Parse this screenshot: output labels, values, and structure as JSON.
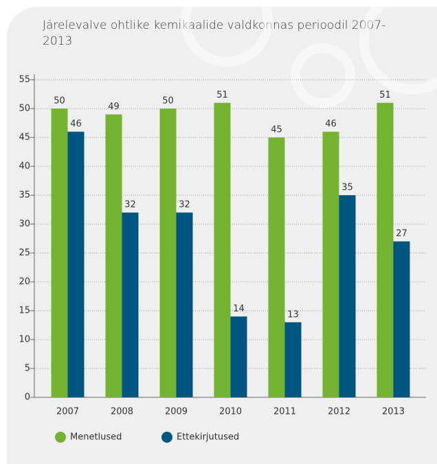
{
  "chart_data": {
    "type": "bar",
    "title": "Järelevalve ohtlike kemikaalide valdkonnas perioodil 2007-2013",
    "categories": [
      "2007",
      "2008",
      "2009",
      "2010",
      "2011",
      "2012",
      "2013"
    ],
    "series": [
      {
        "name": "Menetlused",
        "color": "#74b232",
        "values": [
          50,
          49,
          50,
          51,
          45,
          46,
          51
        ]
      },
      {
        "name": "Ettekirjutused",
        "color": "#005581",
        "values": [
          46,
          32,
          32,
          14,
          13,
          35,
          27
        ]
      }
    ],
    "ylim": [
      0,
      55
    ],
    "yticks": [
      0,
      5,
      10,
      15,
      20,
      25,
      30,
      35,
      40,
      45,
      50,
      55
    ],
    "grid": true
  }
}
